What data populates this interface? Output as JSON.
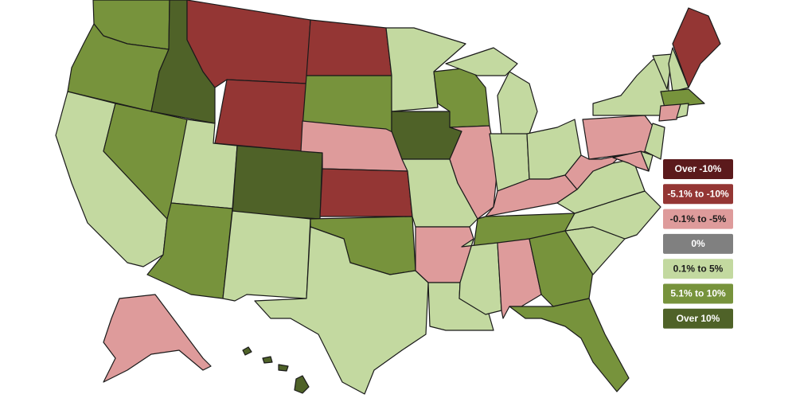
{
  "legend": {
    "items": [
      {
        "label": "Over -10%",
        "color": "#5b1a1c"
      },
      {
        "label": "-5.1% to -10%",
        "color": "#943634"
      },
      {
        "label": "-0.1% to -5%",
        "color": "#de9b9b"
      },
      {
        "label": "0%",
        "color": "#808080"
      },
      {
        "label": "0.1% to 5%",
        "color": "#c3d9a0"
      },
      {
        "label": "5.1% to 10%",
        "color": "#77933c"
      },
      {
        "label": "Over 10%",
        "color": "#4f6228"
      }
    ]
  }
}
